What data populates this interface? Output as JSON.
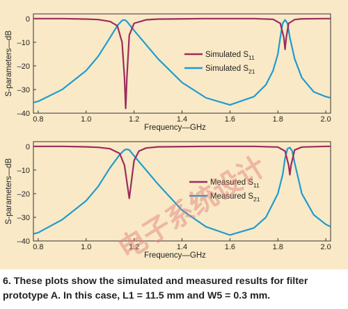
{
  "figure": {
    "background": "#f9e9c6",
    "watermark": "电子系统设计"
  },
  "caption": "6. These plots show the simulated and measured results for filter prototype A. In this case, L1 = 11.5 mm and W5 = 0.3 mm.",
  "chart_data": [
    {
      "type": "line",
      "xlabel": "Frequency—GHz",
      "ylabel": "S-parameters—dB",
      "xlim": [
        0.78,
        2.02
      ],
      "ylim": [
        -40,
        2
      ],
      "xticks": [
        "0.8",
        "1.0",
        "1.2",
        "1.4",
        "1.6",
        "1.8",
        "2.0"
      ],
      "yticks": [
        "0",
        "–10",
        "–20",
        "–30",
        "–40"
      ],
      "grid": false,
      "legend": "center-right",
      "series": [
        {
          "name": "Simulated S",
          "sub": "11",
          "color": "#9b2c5c",
          "x": [
            0.78,
            0.9,
            1.0,
            1.05,
            1.1,
            1.13,
            1.15,
            1.16,
            1.165,
            1.17,
            1.18,
            1.2,
            1.25,
            1.3,
            1.5,
            1.7,
            1.78,
            1.81,
            1.825,
            1.83,
            1.835,
            1.845,
            1.87,
            1.9,
            2.0,
            2.02
          ],
          "y": [
            0,
            0,
            -0.2,
            -0.4,
            -1.2,
            -3,
            -10,
            -25,
            -38,
            -25,
            -7,
            -2,
            -0.5,
            -0.2,
            0,
            0,
            -0.3,
            -2,
            -8,
            -13,
            -8,
            -2,
            -0.4,
            -0.1,
            0,
            0
          ]
        },
        {
          "name": "Simulated S",
          "sub": "21",
          "color": "#1f9bd0",
          "x": [
            0.78,
            0.8,
            0.9,
            1.0,
            1.05,
            1.1,
            1.13,
            1.15,
            1.16,
            1.17,
            1.2,
            1.3,
            1.4,
            1.5,
            1.6,
            1.7,
            1.75,
            1.78,
            1.8,
            1.81,
            1.82,
            1.83,
            1.84,
            1.85,
            1.87,
            1.9,
            1.95,
            2.0,
            2.02
          ],
          "y": [
            -35.5,
            -35,
            -30,
            -22,
            -16,
            -8,
            -3,
            -0.8,
            -0.5,
            -1.2,
            -5,
            -17,
            -27,
            -33.5,
            -36.5,
            -33,
            -28,
            -22,
            -15,
            -8,
            -2,
            -0.5,
            -2,
            -8,
            -17,
            -25,
            -31,
            -33,
            -33.5
          ]
        }
      ]
    },
    {
      "type": "line",
      "xlabel": "Frequency—GHz",
      "ylabel": "S-parameters—dB",
      "xlim": [
        0.78,
        2.02
      ],
      "ylim": [
        -40,
        2
      ],
      "xticks": [
        "0.8",
        "1.0",
        "1.2",
        "1.4",
        "1.6",
        "1.8",
        "2.0"
      ],
      "yticks": [
        "0",
        "–10",
        "–20",
        "–30",
        "–40"
      ],
      "grid": false,
      "legend": "center-right",
      "series": [
        {
          "name": "Measured S",
          "sub": "11",
          "color": "#9b2c5c",
          "x": [
            0.78,
            0.9,
            1.0,
            1.05,
            1.1,
            1.14,
            1.16,
            1.17,
            1.18,
            1.19,
            1.2,
            1.22,
            1.25,
            1.3,
            1.5,
            1.7,
            1.8,
            1.83,
            1.845,
            1.85,
            1.855,
            1.87,
            1.9,
            2.0,
            2.02
          ],
          "y": [
            0,
            0,
            -0.2,
            -0.4,
            -1,
            -3,
            -8,
            -15,
            -22,
            -14,
            -6,
            -2,
            -0.7,
            -0.2,
            0,
            0,
            -0.3,
            -2,
            -8,
            -12,
            -8,
            -1.5,
            -0.3,
            0,
            0
          ]
        },
        {
          "name": "Measured S",
          "sub": "21",
          "color": "#1f9bd0",
          "x": [
            0.78,
            0.8,
            0.9,
            1.0,
            1.05,
            1.1,
            1.14,
            1.16,
            1.17,
            1.18,
            1.2,
            1.3,
            1.4,
            1.5,
            1.6,
            1.7,
            1.75,
            1.8,
            1.82,
            1.83,
            1.84,
            1.85,
            1.86,
            1.87,
            1.9,
            1.95,
            2.0,
            2.02
          ],
          "y": [
            -37,
            -36.5,
            -31,
            -23,
            -17,
            -9,
            -3.5,
            -1.5,
            -1.2,
            -1.5,
            -4,
            -16,
            -27,
            -34,
            -37.5,
            -34.5,
            -30,
            -20,
            -12,
            -5,
            -1,
            -0.5,
            -2,
            -7,
            -20,
            -29,
            -33,
            -34
          ]
        }
      ]
    }
  ]
}
